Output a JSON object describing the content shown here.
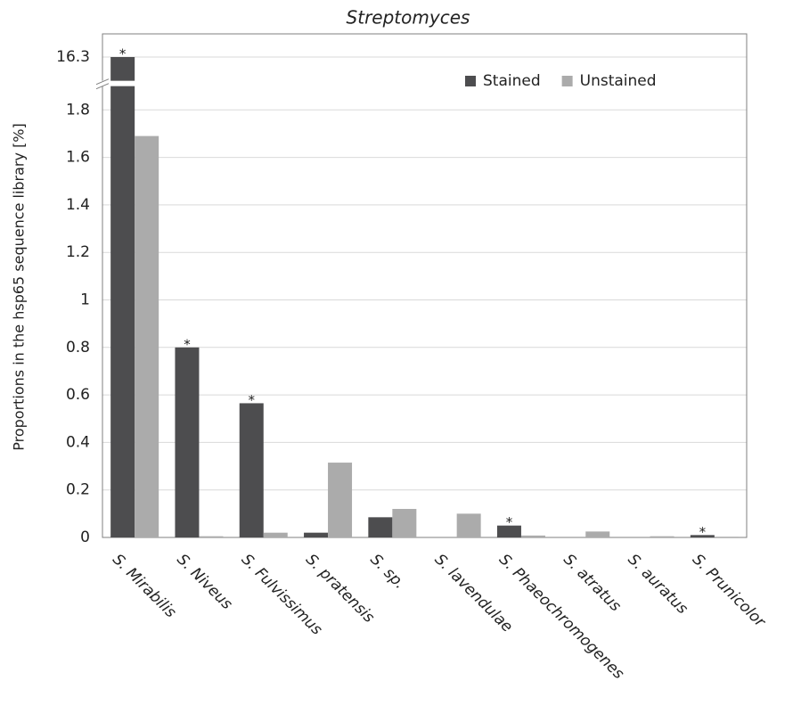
{
  "chart_data": {
    "type": "bar",
    "title": "Streptomyces",
    "y_label": "Proportions in the hsp65 sequence library [%]",
    "categories": [
      "S. Mirabilis",
      "S. Niveus",
      "S. Fulvissimus",
      "S. pratensis",
      "S. sp.",
      "S. lavendulae",
      "S. Phaeochromogenes",
      "S. atratus",
      "S. auratus",
      "S. Prunicolor"
    ],
    "series": [
      {
        "name": "Stained",
        "color": "#4d4d4f",
        "values": [
          16.3,
          0.8,
          0.565,
          0.02,
          0.085,
          0,
          0.05,
          0,
          0,
          0.01
        ],
        "marks": [
          "*",
          "*",
          "*",
          null,
          null,
          null,
          "*",
          null,
          null,
          "*"
        ]
      },
      {
        "name": "Unstained",
        "color": "#ababab",
        "values": [
          1.69,
          0.005,
          0.02,
          0.315,
          0.12,
          0.1,
          0.008,
          0.025,
          0.005,
          0.003
        ]
      }
    ],
    "ylim": [
      0,
      16.3
    ],
    "ybreak": [
      1.9,
      16.2
    ],
    "yticks": [
      0,
      0.2,
      0.4,
      0.6,
      0.8,
      1,
      1.2,
      1.4,
      1.6,
      1.8,
      16.3
    ],
    "grid": true,
    "legend": "top-right"
  }
}
